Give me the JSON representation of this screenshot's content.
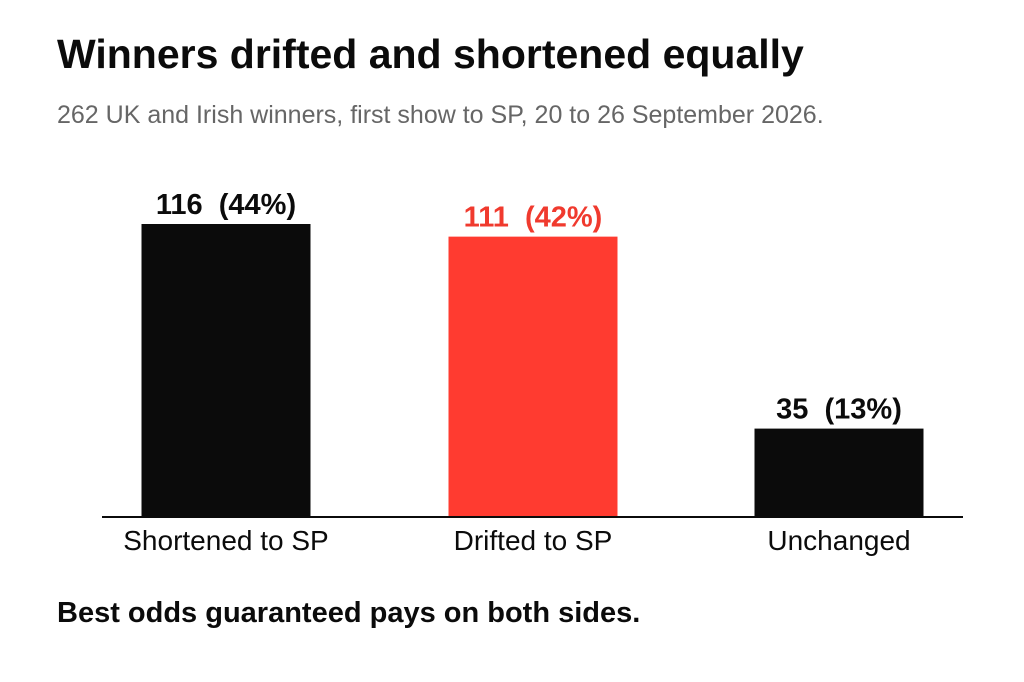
{
  "title": "Winners drifted and shortened equally",
  "subtitle": "262 UK and Irish winners, first show to SP, 20 to 26 September 2026.",
  "footnote": "Best odds guaranteed pays on both sides.",
  "colors": {
    "default_bar": "#0b0b0b",
    "highlight_bar": "#ff3b30",
    "highlight_label": "#f03a2e",
    "axis": "#0b0b0b",
    "subtitle": "#666666"
  },
  "chart_data": {
    "type": "bar",
    "categories": [
      "Shortened to SP",
      "Drifted to SP",
      "Unchanged"
    ],
    "values": [
      116,
      111,
      35
    ],
    "percentages": [
      "44%",
      "42%",
      "13%"
    ],
    "labels": [
      "116  (44%)",
      "111  (42%)",
      "35  (13%)"
    ],
    "highlight": [
      false,
      true,
      false
    ],
    "title": "Winners drifted and shortened equally",
    "xlabel": "",
    "ylabel": "",
    "ylim": [
      0,
      116
    ],
    "grid": false,
    "legend": "none"
  }
}
